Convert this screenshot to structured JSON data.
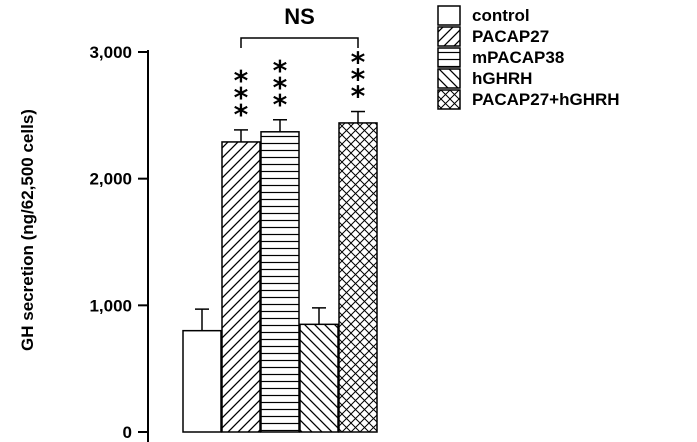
{
  "chart_data": {
    "type": "bar",
    "categories": [
      "control",
      "PACAP27",
      "mPACAP38",
      "hGHRH",
      "PACAP27+hGHRH"
    ],
    "values": [
      800,
      2290,
      2370,
      850,
      2440
    ],
    "errors": [
      170,
      95,
      95,
      130,
      90
    ],
    "series_patterns": [
      "none",
      "diagonal-up",
      "horizontal",
      "diagonal-down",
      "crosshatch"
    ],
    "significance": [
      "",
      "***",
      "***",
      "",
      "***"
    ],
    "ylabel": "GH secretion (ng/62,500 cells)",
    "ylim": [
      0,
      3000
    ],
    "yticks": [
      0,
      1000,
      2000,
      3000
    ],
    "ytick_labels": [
      "0",
      "1,000",
      "2,000",
      "3,000"
    ],
    "bracket": {
      "from": 1,
      "to": 4,
      "label": "NS"
    },
    "legend": {
      "position": "top-right",
      "entries": [
        "control",
        "PACAP27",
        "mPACAP38",
        "hGHRH",
        "PACAP27+hGHRH"
      ]
    },
    "grid": false,
    "colors": {
      "ink": "#000000",
      "fill": "#ffffff"
    }
  }
}
